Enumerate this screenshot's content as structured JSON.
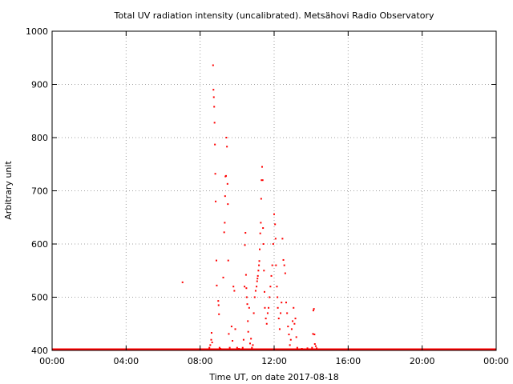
{
  "chart_data": {
    "type": "scatter",
    "title": "Total UV radiation intensity (uncalibrated). Metsähovi Radio Observatory",
    "xlabel": "Time UT, on date 2017-08-18",
    "ylabel": "Arbitrary unit",
    "xlim": [
      0,
      24
    ],
    "ylim": [
      400,
      1000
    ],
    "x_ticks": [
      0,
      4,
      8,
      12,
      16,
      20,
      24
    ],
    "x_tick_labels": [
      "00:00",
      "04:00",
      "08:00",
      "12:00",
      "16:00",
      "20:00",
      "00:00"
    ],
    "y_ticks": [
      400,
      500,
      600,
      700,
      800,
      900,
      1000
    ],
    "y_tick_labels": [
      "400",
      "500",
      "600",
      "700",
      "800",
      "900",
      "1000"
    ],
    "grid": true,
    "marker_color": "#ff0000",
    "baseline": {
      "from": 0,
      "to": 24,
      "value": 400
    },
    "series": [
      {
        "points": [
          [
            7.05,
            528
          ],
          [
            8.5,
            405
          ],
          [
            8.55,
            410
          ],
          [
            8.6,
            420
          ],
          [
            8.62,
            433
          ],
          [
            8.65,
            415
          ],
          [
            8.7,
            936
          ],
          [
            8.72,
            890
          ],
          [
            8.74,
            876
          ],
          [
            8.76,
            858
          ],
          [
            8.78,
            828
          ],
          [
            8.8,
            787
          ],
          [
            8.82,
            732
          ],
          [
            8.84,
            680
          ],
          [
            8.88,
            569
          ],
          [
            8.9,
            522
          ],
          [
            8.98,
            493
          ],
          [
            9.0,
            485
          ],
          [
            9.02,
            468
          ],
          [
            9.05,
            405
          ],
          [
            9.1,
            403
          ],
          [
            9.25,
            537
          ],
          [
            9.3,
            622
          ],
          [
            9.33,
            640
          ],
          [
            9.35,
            690
          ],
          [
            9.37,
            727
          ],
          [
            9.4,
            728
          ],
          [
            9.42,
            800
          ],
          [
            9.45,
            783
          ],
          [
            9.48,
            713
          ],
          [
            9.5,
            675
          ],
          [
            9.52,
            569
          ],
          [
            9.55,
            431
          ],
          [
            9.6,
            405
          ],
          [
            9.7,
            445
          ],
          [
            9.75,
            418
          ],
          [
            9.8,
            520
          ],
          [
            9.85,
            512
          ],
          [
            9.9,
            440
          ],
          [
            10.0,
            405
          ],
          [
            10.1,
            403
          ],
          [
            10.3,
            405
          ],
          [
            10.35,
            420
          ],
          [
            10.4,
            520
          ],
          [
            10.42,
            598
          ],
          [
            10.45,
            621
          ],
          [
            10.48,
            542
          ],
          [
            10.5,
            517
          ],
          [
            10.52,
            500
          ],
          [
            10.55,
            487
          ],
          [
            10.58,
            455
          ],
          [
            10.6,
            435
          ],
          [
            10.65,
            480
          ],
          [
            10.7,
            413
          ],
          [
            10.75,
            422
          ],
          [
            10.8,
            405
          ],
          [
            10.85,
            410
          ],
          [
            10.9,
            470
          ],
          [
            10.95,
            500
          ],
          [
            11.0,
            512
          ],
          [
            11.05,
            520
          ],
          [
            11.08,
            530
          ],
          [
            11.1,
            535
          ],
          [
            11.12,
            540
          ],
          [
            11.15,
            550
          ],
          [
            11.18,
            560
          ],
          [
            11.2,
            568
          ],
          [
            11.22,
            590
          ],
          [
            11.25,
            620
          ],
          [
            11.28,
            640
          ],
          [
            11.3,
            685
          ],
          [
            11.32,
            720
          ],
          [
            11.35,
            745
          ],
          [
            11.38,
            720
          ],
          [
            11.4,
            630
          ],
          [
            11.42,
            600
          ],
          [
            11.45,
            550
          ],
          [
            11.48,
            510
          ],
          [
            11.5,
            480
          ],
          [
            11.55,
            460
          ],
          [
            11.6,
            450
          ],
          [
            11.65,
            470
          ],
          [
            11.7,
            480
          ],
          [
            11.75,
            500
          ],
          [
            11.8,
            520
          ],
          [
            11.85,
            540
          ],
          [
            11.9,
            560
          ],
          [
            11.95,
            600
          ],
          [
            12.0,
            656
          ],
          [
            12.05,
            637
          ],
          [
            12.08,
            610
          ],
          [
            12.1,
            560
          ],
          [
            12.15,
            520
          ],
          [
            12.18,
            500
          ],
          [
            12.2,
            480
          ],
          [
            12.25,
            460
          ],
          [
            12.3,
            440
          ],
          [
            12.35,
            470
          ],
          [
            12.4,
            490
          ],
          [
            12.45,
            610
          ],
          [
            12.5,
            570
          ],
          [
            12.55,
            560
          ],
          [
            12.6,
            545
          ],
          [
            12.65,
            490
          ],
          [
            12.7,
            470
          ],
          [
            12.75,
            445
          ],
          [
            12.8,
            430
          ],
          [
            12.85,
            410
          ],
          [
            12.9,
            420
          ],
          [
            12.95,
            440
          ],
          [
            13.0,
            455
          ],
          [
            13.05,
            480
          ],
          [
            13.1,
            450
          ],
          [
            13.15,
            460
          ],
          [
            13.2,
            425
          ],
          [
            13.25,
            405
          ],
          [
            13.3,
            402
          ],
          [
            13.5,
            403
          ],
          [
            13.8,
            404
          ],
          [
            14.05,
            405
          ],
          [
            14.1,
            431
          ],
          [
            14.12,
            475
          ],
          [
            14.15,
            478
          ],
          [
            14.18,
            430
          ],
          [
            14.2,
            412
          ],
          [
            14.25,
            408
          ],
          [
            14.3,
            404
          ]
        ]
      }
    ]
  }
}
